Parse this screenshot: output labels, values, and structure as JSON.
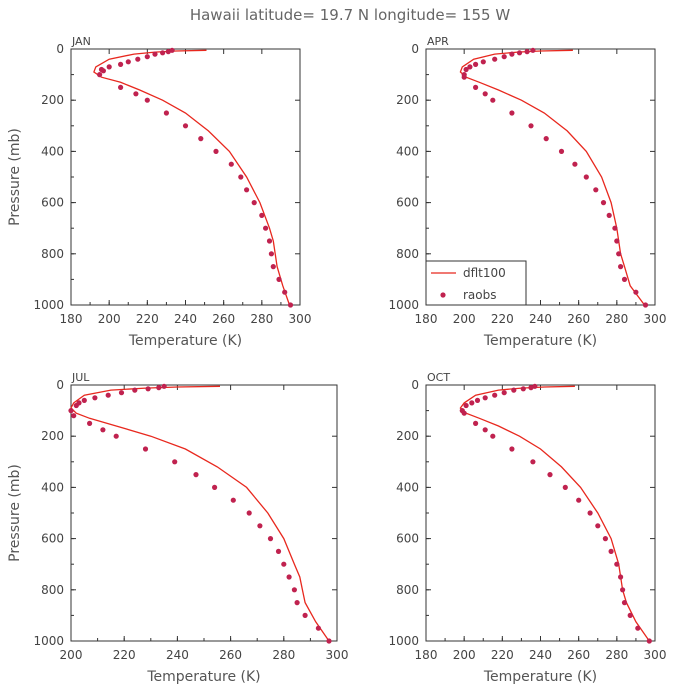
{
  "figure": {
    "title": "Hawaii  latitude= 19.7 N longitude= 155 W",
    "colors": {
      "model": "#e8281e",
      "obs": "#c0224f",
      "axis": "#333333"
    }
  },
  "legend": {
    "panel": "APR",
    "entries": [
      "dflt100",
      "raobs"
    ]
  },
  "chart_data": [
    {
      "type": "line",
      "label": "JAN",
      "xlabel": "Temperature (K)",
      "ylabel": "Pressure (mb)",
      "xlim": [
        180,
        300
      ],
      "ylim": [
        1000,
        0
      ],
      "xticks": [
        180,
        200,
        220,
        240,
        260,
        280,
        300
      ],
      "yticks": [
        0,
        200,
        400,
        600,
        800,
        1000
      ],
      "series": [
        {
          "name": "dflt100",
          "style": "line",
          "x": [
            251,
            235,
            224,
            213,
            200,
            193,
            192,
            196,
            206,
            216,
            228,
            240,
            252,
            263,
            272,
            279,
            284,
            286,
            287,
            288,
            291,
            294.5
          ],
          "y": [
            5,
            8,
            12,
            20,
            40,
            70,
            90,
            110,
            130,
            160,
            200,
            250,
            320,
            400,
            500,
            600,
            700,
            750,
            800,
            850,
            925,
            1000
          ]
        },
        {
          "name": "raobs",
          "style": "points",
          "x": [
            233,
            231,
            228,
            224,
            220,
            215,
            210,
            206,
            200,
            196,
            195,
            197,
            206,
            214,
            220,
            230,
            240,
            248,
            256,
            264,
            269,
            272,
            276,
            280,
            282,
            284,
            285,
            286,
            289,
            292,
            295
          ],
          "y": [
            5,
            10,
            15,
            20,
            30,
            40,
            50,
            60,
            70,
            80,
            100,
            85,
            150,
            175,
            200,
            250,
            300,
            350,
            400,
            450,
            500,
            550,
            600,
            650,
            700,
            750,
            800,
            850,
            900,
            950,
            1000
          ]
        }
      ]
    },
    {
      "type": "line",
      "label": "APR",
      "xlabel": "Temperature (K)",
      "ylabel": "",
      "xlim": [
        180,
        300
      ],
      "ylim": [
        1000,
        0
      ],
      "xticks": [
        180,
        200,
        220,
        240,
        260,
        280,
        300
      ],
      "yticks": [
        0,
        200,
        400,
        600,
        800,
        1000
      ],
      "series": [
        {
          "name": "dflt100",
          "style": "line",
          "x": [
            257,
            240,
            228,
            216,
            205,
            199,
            198,
            201,
            208,
            218,
            230,
            242,
            254,
            264,
            272,
            277,
            280,
            282,
            284,
            287,
            294.5
          ],
          "y": [
            5,
            8,
            12,
            20,
            40,
            70,
            90,
            110,
            130,
            160,
            200,
            250,
            320,
            400,
            500,
            600,
            700,
            800,
            850,
            925,
            1000
          ]
        },
        {
          "name": "raobs",
          "style": "points",
          "x": [
            236,
            233,
            229,
            225,
            221,
            216,
            210,
            206,
            203,
            201,
            200,
            200,
            206,
            211,
            215,
            225,
            235,
            243,
            251,
            258,
            264,
            269,
            273,
            276,
            279,
            280,
            281,
            282,
            284,
            290,
            295
          ],
          "y": [
            5,
            10,
            15,
            20,
            30,
            40,
            50,
            60,
            70,
            80,
            100,
            110,
            150,
            175,
            200,
            250,
            300,
            350,
            400,
            450,
            500,
            550,
            600,
            650,
            700,
            750,
            800,
            850,
            900,
            950,
            1000
          ]
        }
      ]
    },
    {
      "type": "line",
      "label": "JUL",
      "xlabel": "Temperature (K)",
      "ylabel": "Pressure (mb)",
      "xlim": [
        200,
        300
      ],
      "ylim": [
        1000,
        0
      ],
      "xticks": [
        200,
        220,
        240,
        260,
        280,
        300
      ],
      "yticks": [
        0,
        200,
        400,
        600,
        800,
        1000
      ],
      "series": [
        {
          "name": "dflt100",
          "style": "line",
          "x": [
            256,
            240,
            228,
            215,
            205,
            201,
            200,
            202,
            207,
            217,
            230,
            243,
            255,
            266,
            274,
            280,
            284,
            286,
            287,
            288,
            292,
            297
          ],
          "y": [
            5,
            8,
            12,
            20,
            40,
            70,
            90,
            110,
            130,
            160,
            200,
            250,
            320,
            400,
            500,
            600,
            700,
            750,
            800,
            850,
            925,
            1000
          ]
        },
        {
          "name": "raobs",
          "style": "points",
          "x": [
            235,
            233,
            229,
            224,
            219,
            214,
            209,
            205,
            203,
            202,
            200,
            201,
            207,
            212,
            217,
            228,
            239,
            247,
            254,
            261,
            267,
            271,
            275,
            278,
            280,
            282,
            284,
            285,
            288,
            293,
            297
          ],
          "y": [
            5,
            10,
            15,
            20,
            30,
            40,
            50,
            60,
            70,
            80,
            100,
            120,
            150,
            175,
            200,
            250,
            300,
            350,
            400,
            450,
            500,
            550,
            600,
            650,
            700,
            750,
            800,
            850,
            900,
            950,
            1000
          ]
        }
      ]
    },
    {
      "type": "line",
      "label": "OCT",
      "xlabel": "Temperature (K)",
      "ylabel": "",
      "xlim": [
        180,
        300
      ],
      "ylim": [
        1000,
        0
      ],
      "xticks": [
        180,
        200,
        220,
        240,
        260,
        280,
        300
      ],
      "yticks": [
        0,
        200,
        400,
        600,
        800,
        1000
      ],
      "series": [
        {
          "name": "dflt100",
          "style": "line",
          "x": [
            258,
            242,
            230,
            218,
            206,
            200,
            198,
            201,
            208,
            218,
            229,
            240,
            251,
            261,
            270,
            277,
            281,
            283,
            285,
            290,
            297
          ],
          "y": [
            5,
            8,
            12,
            20,
            40,
            70,
            90,
            110,
            130,
            160,
            200,
            250,
            320,
            400,
            500,
            600,
            700,
            800,
            850,
            925,
            1000
          ]
        },
        {
          "name": "raobs",
          "style": "points",
          "x": [
            237,
            235,
            231,
            226,
            221,
            216,
            211,
            207,
            204,
            201,
            199,
            200,
            206,
            211,
            215,
            225,
            236,
            245,
            253,
            260,
            266,
            270,
            274,
            277,
            280,
            282,
            283,
            284,
            287,
            291,
            297
          ],
          "y": [
            5,
            10,
            15,
            20,
            30,
            40,
            50,
            60,
            70,
            80,
            100,
            110,
            150,
            175,
            200,
            250,
            300,
            350,
            400,
            450,
            500,
            550,
            600,
            650,
            700,
            750,
            800,
            850,
            900,
            950,
            1000
          ]
        }
      ]
    }
  ]
}
